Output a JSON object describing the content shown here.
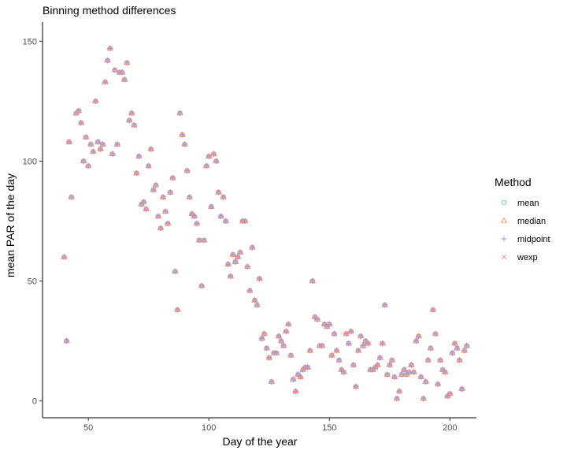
{
  "chart_data": {
    "type": "scatter",
    "title": "Binning method differences",
    "xlabel": "Day of the year",
    "ylabel": "mean PAR of the day",
    "xlim": [
      31,
      211
    ],
    "ylim": [
      -7,
      158
    ],
    "xticks": [
      50,
      100,
      150,
      200
    ],
    "yticks": [
      0,
      50,
      100,
      150
    ],
    "grid": false,
    "legend": {
      "title": "Method",
      "position": "right",
      "entries": [
        {
          "name": "mean",
          "color": "#66c2a5",
          "shape": "circle"
        },
        {
          "name": "median",
          "color": "#fc8d62",
          "shape": "triangle"
        },
        {
          "name": "midpoint",
          "color": "#8da0cb",
          "shape": "plus"
        },
        {
          "name": "wexp",
          "color": "#e78ac3",
          "shape": "cross"
        }
      ]
    },
    "series": [
      {
        "name": "median",
        "points": [
          [
            40,
            60
          ],
          [
            41,
            25
          ],
          [
            42,
            108
          ],
          [
            43,
            85
          ],
          [
            45,
            120
          ],
          [
            46,
            121
          ],
          [
            47,
            116
          ],
          [
            48,
            100
          ],
          [
            49,
            110
          ],
          [
            50,
            98
          ],
          [
            51,
            107
          ],
          [
            52,
            104
          ],
          [
            53,
            125
          ],
          [
            54,
            108
          ],
          [
            55,
            105
          ],
          [
            56,
            107
          ],
          [
            57,
            133
          ],
          [
            58,
            142
          ],
          [
            59,
            147
          ],
          [
            60,
            103
          ],
          [
            61,
            138
          ],
          [
            62,
            107
          ],
          [
            63,
            137
          ],
          [
            64,
            137
          ],
          [
            65,
            134
          ],
          [
            66,
            141
          ],
          [
            67,
            117
          ],
          [
            68,
            120
          ],
          [
            69,
            115
          ],
          [
            70,
            95
          ],
          [
            71,
            102
          ],
          [
            72,
            82
          ],
          [
            73,
            83
          ],
          [
            74,
            80
          ],
          [
            75,
            98
          ],
          [
            76,
            105
          ],
          [
            77,
            88
          ],
          [
            78,
            90
          ],
          [
            79,
            77
          ],
          [
            80,
            72
          ],
          [
            81,
            85
          ],
          [
            82,
            79
          ],
          [
            83,
            74
          ],
          [
            84,
            87
          ],
          [
            85,
            93
          ],
          [
            86,
            54
          ],
          [
            87,
            38
          ],
          [
            88,
            120
          ],
          [
            89,
            111
          ],
          [
            90,
            107
          ],
          [
            91,
            96
          ],
          [
            92,
            85
          ],
          [
            93,
            78
          ],
          [
            94,
            77
          ],
          [
            95,
            74
          ],
          [
            96,
            67
          ],
          [
            97,
            48
          ],
          [
            98,
            67
          ],
          [
            99,
            98
          ],
          [
            100,
            102
          ],
          [
            101,
            81
          ],
          [
            102,
            103
          ],
          [
            103,
            100
          ],
          [
            104,
            87
          ],
          [
            105,
            77
          ],
          [
            106,
            85
          ],
          [
            107,
            75
          ],
          [
            108,
            57
          ],
          [
            109,
            52
          ],
          [
            110,
            61
          ],
          [
            111,
            58
          ],
          [
            112,
            60
          ],
          [
            113,
            62
          ],
          [
            114,
            75
          ],
          [
            115,
            75
          ],
          [
            116,
            56
          ],
          [
            117,
            46
          ],
          [
            118,
            64
          ],
          [
            119,
            42
          ],
          [
            120,
            40
          ],
          [
            121,
            51
          ],
          [
            122,
            26
          ],
          [
            123,
            28
          ],
          [
            124,
            22
          ],
          [
            125,
            18
          ],
          [
            126,
            8
          ],
          [
            127,
            20
          ],
          [
            128,
            20
          ],
          [
            129,
            27
          ],
          [
            130,
            25
          ],
          [
            131,
            23
          ],
          [
            132,
            29
          ],
          [
            133,
            32
          ],
          [
            134,
            19
          ],
          [
            135,
            9
          ],
          [
            136,
            4
          ],
          [
            137,
            11
          ],
          [
            138,
            10
          ],
          [
            139,
            13
          ],
          [
            140,
            14
          ],
          [
            141,
            14
          ],
          [
            142,
            21
          ],
          [
            143,
            50
          ],
          [
            144,
            35
          ],
          [
            145,
            34
          ],
          [
            146,
            23
          ],
          [
            147,
            23
          ],
          [
            148,
            32
          ],
          [
            149,
            31
          ],
          [
            150,
            32
          ],
          [
            151,
            19
          ],
          [
            152,
            28
          ],
          [
            153,
            21
          ],
          [
            154,
            17
          ],
          [
            155,
            13
          ],
          [
            156,
            12
          ],
          [
            157,
            28
          ],
          [
            158,
            24
          ],
          [
            159,
            29
          ],
          [
            160,
            15
          ],
          [
            161,
            6
          ],
          [
            162,
            21
          ],
          [
            163,
            27
          ],
          [
            164,
            23
          ],
          [
            165,
            25
          ],
          [
            166,
            24
          ],
          [
            167,
            13
          ],
          [
            168,
            13
          ],
          [
            169,
            14
          ],
          [
            170,
            15
          ],
          [
            171,
            18
          ],
          [
            172,
            24
          ],
          [
            173,
            40
          ],
          [
            174,
            11
          ],
          [
            175,
            15
          ],
          [
            176,
            17
          ],
          [
            177,
            10
          ],
          [
            178,
            1
          ],
          [
            179,
            4
          ],
          [
            180,
            11
          ],
          [
            181,
            13
          ],
          [
            182,
            11
          ],
          [
            183,
            12
          ],
          [
            184,
            15
          ],
          [
            185,
            12
          ],
          [
            186,
            25
          ],
          [
            187,
            27
          ],
          [
            188,
            10
          ],
          [
            189,
            1
          ],
          [
            190,
            8
          ],
          [
            191,
            17
          ],
          [
            192,
            22
          ],
          [
            193,
            38
          ],
          [
            194,
            28
          ],
          [
            195,
            7
          ],
          [
            196,
            17
          ],
          [
            197,
            13
          ],
          [
            198,
            12
          ],
          [
            199,
            2
          ],
          [
            200,
            3
          ],
          [
            201,
            20
          ],
          [
            202,
            24
          ],
          [
            203,
            22
          ],
          [
            204,
            17
          ],
          [
            205,
            5
          ],
          [
            206,
            21
          ],
          [
            207,
            23
          ]
        ]
      }
    ]
  }
}
